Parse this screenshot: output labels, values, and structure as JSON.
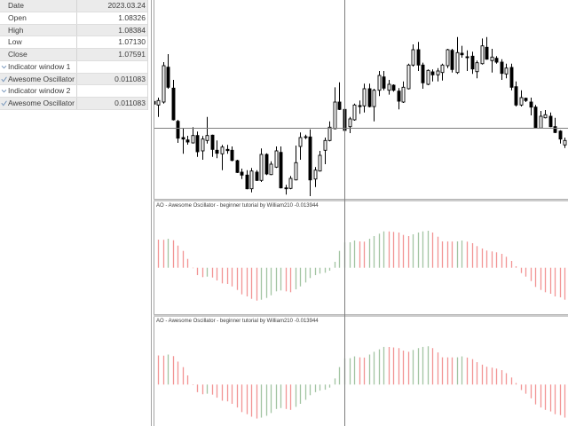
{
  "data_window": {
    "rows": [
      {
        "label": "Date",
        "value": "2023.03.24"
      },
      {
        "label": "Open",
        "value": "1.08326"
      },
      {
        "label": "High",
        "value": "1.08384"
      },
      {
        "label": "Low",
        "value": "1.07130"
      },
      {
        "label": "Close",
        "value": "1.07591"
      },
      {
        "label": "Indicator window 1",
        "value": "",
        "icon": "chevron-down-icon"
      },
      {
        "label": "Awesome Oscillator",
        "value": "0.011083",
        "icon": "check-icon"
      },
      {
        "label": "Indicator window 2",
        "value": "",
        "icon": "chevron-down-icon"
      },
      {
        "label": "Awesome Oscillator",
        "value": "0.011083",
        "icon": "check-icon"
      }
    ]
  },
  "indicator_panels": [
    {
      "label": "AO - Awesome Oscillator - beginner tutorial by William210 -0.013944"
    },
    {
      "label": "AO - Awesome Oscillator - beginner tutorial by William210 -0.013944"
    }
  ],
  "chart_data": {
    "type": "candlestick",
    "selected_bar_index": 39,
    "selected_bar": {
      "date": "2023.03.24",
      "open": 1.08326,
      "high": 1.08384,
      "low": 1.0713,
      "close": 1.07591
    },
    "candle_format": [
      "open",
      "high",
      "low",
      "close"
    ],
    "candles": [
      [
        1.08606,
        1.08646,
        1.08491,
        1.08512
      ],
      [
        1.08481,
        1.08739,
        1.08065,
        1.08637
      ],
      [
        1.08584,
        1.09981,
        1.08531,
        1.09857
      ],
      [
        1.09804,
        1.10261,
        1.0905,
        1.09102
      ],
      [
        1.09071,
        1.0936,
        1.0794,
        1.07963
      ],
      [
        1.0791,
        1.07963,
        1.07155,
        1.0732
      ],
      [
        1.07342,
        1.07683,
        1.06773,
        1.07289
      ],
      [
        1.07258,
        1.07404,
        1.07093,
        1.07186
      ],
      [
        1.07155,
        1.07705,
        1.07133,
        1.07413
      ],
      [
        1.07413,
        1.0755,
        1.06668,
        1.06845
      ],
      [
        1.06876,
        1.07394,
        1.06565,
        1.07289
      ],
      [
        1.07239,
        1.08065,
        1.07133,
        1.07413
      ],
      [
        1.07425,
        1.07444,
        1.06668,
        1.06928
      ],
      [
        1.06897,
        1.07239,
        1.06618,
        1.06792
      ],
      [
        1.06773,
        1.07084,
        1.06202,
        1.07009
      ],
      [
        1.06928,
        1.07084,
        1.06773,
        1.06885
      ],
      [
        1.06897,
        1.07031,
        1.06512,
        1.06543
      ],
      [
        1.06534,
        1.06565,
        1.06099,
        1.06121
      ],
      [
        1.0613,
        1.06255,
        1.05891,
        1.06028
      ],
      [
        1.06028,
        1.06202,
        1.05531,
        1.0555
      ],
      [
        1.0555,
        1.06276,
        1.05425,
        1.06171
      ],
      [
        1.0613,
        1.06202,
        1.0582,
        1.05842
      ],
      [
        1.05842,
        1.0696,
        1.05789,
        1.06751
      ],
      [
        1.06751,
        1.06792,
        1.06028,
        1.06068
      ],
      [
        1.06046,
        1.06512,
        1.06028,
        1.0641
      ],
      [
        1.06307,
        1.07031,
        1.06276,
        1.06876
      ],
      [
        1.06823,
        1.07031,
        1.05562,
        1.05581
      ],
      [
        1.05581,
        1.05686,
        1.05345,
        1.05562
      ],
      [
        1.05562,
        1.05997,
        1.05531,
        1.05913
      ],
      [
        1.0586,
        1.07062,
        1.05842,
        1.06463
      ],
      [
        1.07031,
        1.07519,
        1.06565,
        1.07342
      ],
      [
        1.07373,
        1.07444,
        1.07289,
        1.07342
      ],
      [
        1.07363,
        1.0763,
        1.05292,
        1.0586
      ],
      [
        1.05891,
        1.06307,
        1.05612,
        1.06202
      ],
      [
        1.06171,
        1.06876,
        1.06152,
        1.0672
      ],
      [
        1.06897,
        1.07342,
        1.0641,
        1.07239
      ],
      [
        1.07239,
        1.0791,
        1.07208,
        1.07705
      ],
      [
        1.07652,
        1.09102,
        1.0763,
        1.08584
      ],
      [
        1.08584,
        1.09276,
        1.08304,
        1.08326
      ],
      [
        1.08326,
        1.08384,
        1.0713,
        1.07591
      ],
      [
        1.07724,
        1.08065,
        1.07497,
        1.07994
      ],
      [
        1.07963,
        1.08531,
        1.07932,
        1.08481
      ],
      [
        1.0846,
        1.08637,
        1.08171,
        1.08426
      ],
      [
        1.0845,
        1.09227,
        1.0822,
        1.0905
      ],
      [
        1.0905,
        1.09227,
        1.08397,
        1.08426
      ],
      [
        1.08426,
        1.0905,
        1.0791,
        1.08997
      ],
      [
        1.08997,
        1.09671,
        1.08792,
        1.09515
      ],
      [
        1.09463,
        1.09671,
        1.08997,
        1.09071
      ],
      [
        1.08997,
        1.0936,
        1.08842,
        1.09205
      ],
      [
        1.09174,
        1.09205,
        1.08947,
        1.08997
      ],
      [
        1.08966,
        1.09071,
        1.08326,
        1.08615
      ],
      [
        1.08584,
        1.09307,
        1.08553,
        1.09102
      ],
      [
        1.0905,
        1.09928,
        1.09028,
        1.09879
      ],
      [
        1.09879,
        1.10602,
        1.09826,
        1.10416
      ],
      [
        1.10416,
        1.10686,
        1.09671,
        1.09879
      ],
      [
        1.09879,
        1.0996,
        1.0905,
        1.09258
      ],
      [
        1.09205,
        1.09724,
        1.09174,
        1.09692
      ],
      [
        1.0964,
        1.09724,
        1.09307,
        1.09537
      ],
      [
        1.09537,
        1.09773,
        1.09307,
        1.09671
      ],
      [
        1.09618,
        1.09928,
        1.09338,
        1.09879
      ],
      [
        1.09857,
        1.10447,
        1.09773,
        1.10416
      ],
      [
        1.10394,
        1.10447,
        1.09618,
        1.09724
      ],
      [
        1.09618,
        1.1086,
        1.09568,
        1.10314
      ],
      [
        1.10292,
        1.1055,
        1.10137,
        1.10239
      ],
      [
        1.10168,
        1.10394,
        1.09671,
        1.10137
      ],
      [
        1.10189,
        1.10345,
        1.09568,
        1.09742
      ],
      [
        1.09649,
        1.10034,
        1.09413,
        1.0996
      ],
      [
        1.09928,
        1.1081,
        1.09897,
        1.1055
      ],
      [
        1.105,
        1.1086,
        1.10065,
        1.10084
      ],
      [
        1.10034,
        1.10447,
        1.09618,
        1.10158
      ],
      [
        1.10115,
        1.10189,
        1.09928,
        1.09981
      ],
      [
        1.09981,
        1.10084,
        1.0936,
        1.09587
      ],
      [
        1.09568,
        1.09928,
        1.09413,
        1.09773
      ],
      [
        1.09795,
        1.09928,
        1.08997,
        1.09102
      ],
      [
        1.09121,
        1.09307,
        1.08428,
        1.08481
      ],
      [
        1.08481,
        1.08997,
        1.08428,
        1.08739
      ],
      [
        1.08717,
        1.08739,
        1.08584,
        1.08637
      ],
      [
        1.08584,
        1.08739,
        1.08118,
        1.08407
      ],
      [
        1.08407,
        1.08481,
        1.07652,
        1.07674
      ],
      [
        1.07674,
        1.08273,
        1.07652,
        1.08087
      ],
      [
        1.08034,
        1.08304,
        1.08015,
        1.0814
      ],
      [
        1.08087,
        1.0822,
        1.07705,
        1.07724
      ],
      [
        1.07724,
        1.08034,
        1.07497,
        1.07519
      ],
      [
        1.07568,
        1.07599,
        1.07133,
        1.07289
      ],
      [
        1.07084,
        1.07342,
        1.06978,
        1.07239
      ]
    ],
    "indicators": [
      {
        "name": "Awesome Oscillator",
        "window": 1,
        "last_value": -0.013944,
        "values": [
          null,
          0.01228,
          0.0122,
          0.01266,
          0.012,
          0.00968,
          0.00736,
          0.00387,
          -0.0002,
          -0.00321,
          -0.0041,
          -0.00387,
          -0.00426,
          -0.00554,
          -0.00682,
          -0.00709,
          -0.00813,
          -0.00968,
          -0.01162,
          -0.01251,
          -0.01356,
          -0.01433,
          -0.01394,
          -0.01317,
          -0.01201,
          -0.0103,
          -0.00991,
          -0.0103,
          -0.01069,
          -0.00941,
          -0.00813,
          -0.00643,
          -0.00449,
          -0.00321,
          -0.00256,
          -0.00217,
          -0.00128,
          0.00259,
          0.00736,
          0.011083,
          0.01112,
          0.01189,
          0.0115,
          0.01139,
          0.01266,
          0.01383,
          0.01487,
          0.01588,
          0.01585,
          0.01565,
          0.01538,
          0.01433,
          0.01383,
          0.0146,
          0.01538,
          0.01588,
          0.01615,
          0.01538,
          0.01356,
          0.0115,
          0.01148,
          0.01146,
          0.0115,
          0.01189,
          0.01139,
          0.01073,
          0.00945,
          0.0084,
          0.00751,
          0.00713,
          0.00674,
          0.00608,
          0.0048,
          0.00298,
          0.00066,
          -0.00232,
          -0.00387,
          -0.00581,
          -0.00837,
          -0.00968,
          -0.01069,
          -0.01135,
          -0.01251,
          -0.0129,
          -0.013944
        ]
      },
      {
        "name": "Awesome Oscillator",
        "window": 2,
        "last_value": -0.013944,
        "values": [
          null,
          0.01228,
          0.0122,
          0.01266,
          0.012,
          0.00968,
          0.00736,
          0.00387,
          -0.0002,
          -0.00321,
          -0.0041,
          -0.00387,
          -0.00426,
          -0.00554,
          -0.00682,
          -0.00709,
          -0.00813,
          -0.00968,
          -0.01162,
          -0.01251,
          -0.01356,
          -0.01433,
          -0.01394,
          -0.01317,
          -0.01201,
          -0.0103,
          -0.00991,
          -0.0103,
          -0.01069,
          -0.00941,
          -0.00813,
          -0.00643,
          -0.00449,
          -0.00321,
          -0.00256,
          -0.00217,
          -0.00128,
          0.00259,
          0.00736,
          0.011083,
          0.01112,
          0.01189,
          0.0115,
          0.01139,
          0.01266,
          0.01383,
          0.01487,
          0.01588,
          0.01585,
          0.01565,
          0.01538,
          0.01433,
          0.01383,
          0.0146,
          0.01538,
          0.01588,
          0.01615,
          0.01538,
          0.01356,
          0.0115,
          0.01148,
          0.01146,
          0.0115,
          0.01189,
          0.01139,
          0.01073,
          0.00945,
          0.0084,
          0.00751,
          0.00713,
          0.00674,
          0.00608,
          0.0048,
          0.00298,
          0.00066,
          -0.00232,
          -0.00387,
          -0.00581,
          -0.00837,
          -0.00968,
          -0.01069,
          -0.01135,
          -0.01251,
          -0.0129,
          -0.013944
        ]
      }
    ],
    "colors": {
      "bull_body": "#ffffff",
      "bear_body": "#000000",
      "candle_outline": "#000000",
      "ao_up": "#a2c4a2",
      "ao_down": "#f29494",
      "crosshair": "#7d7d7d",
      "separator": "#c8c8c8"
    }
  }
}
